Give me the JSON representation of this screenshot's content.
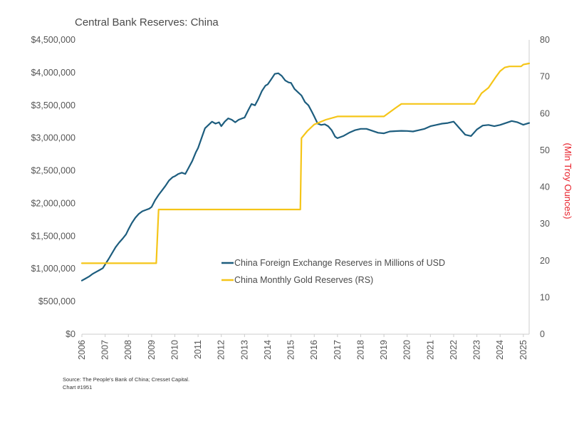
{
  "chart_data": {
    "type": "line",
    "title": "Central Bank Reserves: China",
    "ylabel_right": "(Mln Troy Ounces)",
    "x_tick_labels": [
      "2006",
      "2007",
      "2008",
      "2009",
      "2010",
      "2011",
      "2012",
      "2013",
      "2014",
      "2015",
      "2016",
      "2017",
      "2018",
      "2019",
      "2020",
      "2021",
      "2022",
      "2023",
      "2024",
      "2025"
    ],
    "xlim": [
      2006.0,
      2025.25
    ],
    "y_left": {
      "lim": [
        0,
        4500000
      ],
      "tick_labels": [
        "$0",
        "$500,000",
        "$1,000,000",
        "$1,500,000",
        "$2,000,000",
        "$2,500,000",
        "$3,000,000",
        "$3,500,000",
        "$4,000,000",
        "$4,500,000"
      ],
      "tick_values": [
        0,
        500000,
        1000000,
        1500000,
        2000000,
        2500000,
        3000000,
        3500000,
        4000000,
        4500000
      ]
    },
    "y_right": {
      "lim": [
        0,
        80
      ],
      "tick_labels": [
        "0",
        "10",
        "20",
        "30",
        "40",
        "50",
        "60",
        "70",
        "80"
      ],
      "tick_values": [
        0,
        10,
        20,
        30,
        40,
        50,
        60,
        70,
        80
      ]
    },
    "series": [
      {
        "name": "China Foreign Exchange Reserves in Millions of USD",
        "axis": "left",
        "color": "#1d5d7e",
        "x": [
          2006.0,
          2006.15,
          2006.3,
          2006.45,
          2006.6,
          2006.75,
          2006.9,
          2007.0,
          2007.15,
          2007.3,
          2007.45,
          2007.6,
          2007.75,
          2007.9,
          2008.0,
          2008.15,
          2008.3,
          2008.45,
          2008.6,
          2008.75,
          2008.9,
          2009.0,
          2009.15,
          2009.3,
          2009.45,
          2009.6,
          2009.75,
          2009.9,
          2010.0,
          2010.15,
          2010.3,
          2010.45,
          2010.6,
          2010.75,
          2010.9,
          2011.0,
          2011.15,
          2011.3,
          2011.45,
          2011.6,
          2011.75,
          2011.9,
          2012.0,
          2012.15,
          2012.3,
          2012.45,
          2012.6,
          2012.75,
          2012.9,
          2013.0,
          2013.15,
          2013.3,
          2013.45,
          2013.6,
          2013.75,
          2013.9,
          2014.0,
          2014.15,
          2014.3,
          2014.45,
          2014.6,
          2014.75,
          2014.9,
          2015.0,
          2015.15,
          2015.3,
          2015.45,
          2015.6,
          2015.75,
          2015.9,
          2016.0,
          2016.15,
          2016.3,
          2016.45,
          2016.6,
          2016.75,
          2016.9,
          2017.0,
          2017.25,
          2017.5,
          2017.75,
          2018.0,
          2018.25,
          2018.5,
          2018.75,
          2019.0,
          2019.25,
          2019.5,
          2019.75,
          2020.0,
          2020.25,
          2020.5,
          2020.75,
          2021.0,
          2021.25,
          2021.5,
          2021.75,
          2022.0,
          2022.25,
          2022.5,
          2022.75,
          2023.0,
          2023.25,
          2023.5,
          2023.75,
          2024.0,
          2024.25,
          2024.5,
          2024.75,
          2025.0,
          2025.25
        ],
        "values": [
          820000,
          850000,
          880000,
          920000,
          950000,
          980000,
          1010000,
          1066000,
          1150000,
          1240000,
          1330000,
          1400000,
          1460000,
          1528000,
          1600000,
          1700000,
          1780000,
          1840000,
          1880000,
          1900000,
          1920000,
          1946000,
          2050000,
          2130000,
          2200000,
          2270000,
          2350000,
          2399000,
          2416000,
          2450000,
          2470000,
          2450000,
          2550000,
          2650000,
          2780000,
          2847000,
          3000000,
          3150000,
          3200000,
          3250000,
          3220000,
          3240000,
          3181000,
          3250000,
          3300000,
          3280000,
          3240000,
          3280000,
          3300000,
          3312000,
          3420000,
          3520000,
          3500000,
          3600000,
          3720000,
          3800000,
          3821000,
          3900000,
          3980000,
          3990000,
          3950000,
          3880000,
          3850000,
          3843000,
          3750000,
          3700000,
          3650000,
          3550000,
          3500000,
          3400000,
          3330000,
          3220000,
          3200000,
          3210000,
          3180000,
          3120000,
          3020000,
          2998000,
          3030000,
          3080000,
          3120000,
          3140000,
          3140000,
          3110000,
          3080000,
          3072000,
          3100000,
          3105000,
          3110000,
          3107000,
          3100000,
          3120000,
          3140000,
          3180000,
          3200000,
          3220000,
          3230000,
          3250000,
          3150000,
          3050000,
          3030000,
          3130000,
          3190000,
          3200000,
          3180000,
          3200000,
          3230000,
          3260000,
          3240000,
          3202000,
          3230000
        ]
      },
      {
        "name": "China Monthly Gold Reserves (RS)",
        "axis": "right",
        "color": "#f5c518",
        "x": [
          2006.0,
          2009.2,
          2009.3,
          2015.4,
          2015.45,
          2015.7,
          2016.0,
          2016.5,
          2017.0,
          2019.0,
          2019.5,
          2019.75,
          2022.9,
          2023.0,
          2023.2,
          2023.5,
          2023.8,
          2024.0,
          2024.2,
          2024.4,
          2024.7,
          2024.9,
          2025.0,
          2025.25
        ],
        "values": [
          19.3,
          19.3,
          33.9,
          33.9,
          53.3,
          55.2,
          57.0,
          58.3,
          59.2,
          59.2,
          61.5,
          62.6,
          62.6,
          63.5,
          65.5,
          67.0,
          69.8,
          71.5,
          72.5,
          72.8,
          72.8,
          72.8,
          73.3,
          73.6
        ]
      }
    ],
    "legend": [
      {
        "label": "China Foreign Exchange Reserves in Millions of USD",
        "color": "#1d5d7e"
      },
      {
        "label": "China Monthly Gold Reserves (RS)",
        "color": "#f5c518"
      }
    ],
    "legend_position": "center-right",
    "grid": false
  },
  "footer": {
    "source": "Source: The People's Bank of China; Cresset Capital.",
    "chart_id": "Chart #1951"
  },
  "colors": {
    "axis": "#cccccc",
    "title": "#4a4a4a",
    "right_axis_title": "#e8202a"
  }
}
